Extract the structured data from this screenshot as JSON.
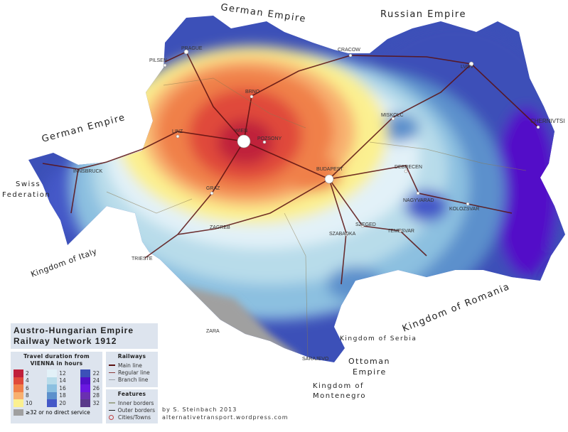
{
  "title": {
    "line1": "Austro-Hungarian Empire",
    "line2": "Railway Network 1912"
  },
  "legend": {
    "travel_header_1": "Travel duration from",
    "travel_header_2": "VIENNA in hours",
    "travel_bins": [
      {
        "label": "2",
        "color": "#c0203a"
      },
      {
        "label": "4",
        "color": "#e04a3a"
      },
      {
        "label": "6",
        "color": "#f0804a"
      },
      {
        "label": "8",
        "color": "#f8b070"
      },
      {
        "label": "10",
        "color": "#fbf090"
      },
      {
        "label": "12",
        "color": "#e2f1f8"
      },
      {
        "label": "14",
        "color": "#b8dcea"
      },
      {
        "label": "16",
        "color": "#8cc0e0"
      },
      {
        "label": "18",
        "color": "#5c90cc"
      },
      {
        "label": "20",
        "color": "#4458c8"
      },
      {
        "label": "22",
        "color": "#3c50b8"
      },
      {
        "label": "24",
        "color": "#5210c8"
      },
      {
        "label": "26",
        "color": "#6a18e0"
      },
      {
        "label": "28",
        "color": "#6a30b0"
      },
      {
        "label": "32",
        "color": "#5a3a8a"
      }
    ],
    "no_service": {
      "label": "≥32 or no direct service",
      "color": "#a0a0a0"
    },
    "railways_header": "Railways",
    "railways": [
      {
        "label": "Main line",
        "color": "#5a1010"
      },
      {
        "label": "Regular line",
        "color": "#8a3a3a"
      },
      {
        "label": "Branch line",
        "color": "#9aa0a8"
      }
    ],
    "features_header": "Features",
    "features": [
      {
        "label": "Inner borders",
        "color": "#a0a890"
      },
      {
        "label": "Outer borders",
        "color": "#222222"
      },
      {
        "label": "Cities/Towns",
        "color": "#c04040"
      }
    ]
  },
  "credit": {
    "author": "by  S. Steinbach 2013",
    "site": "alternativetransport.wordpress.com"
  },
  "countries": {
    "german_empire_north": "German Empire",
    "russian_empire": "Russian Empire",
    "german_empire_west": "German Empire",
    "swiss_1": "Swiss",
    "swiss_2": "Federation",
    "italy": "Kingdom of Italy",
    "romania": "Kingdom of Romania",
    "serbia": "Kingdom of Serbia",
    "ottoman_1": "Ottoman",
    "ottoman_2": "Empire",
    "montenegro_1": "Kingdom of",
    "montenegro_2": "Montenegro"
  },
  "cities": {
    "prague": "PRAGUE",
    "pilsen": "PILSEN",
    "cracow": "CRACOW",
    "brno": "BRNO",
    "vienna": "WIEN",
    "pozsony": "POZSONY",
    "linz": "LINZ",
    "budapest": "BUDAPEST",
    "graz": "GRAZ",
    "innsbruck": "INNSBRUCK",
    "trieste": "TRIESTE",
    "zagreb": "ZAGREB",
    "zara": "ZARA",
    "sarajevo": "SARAJEVO",
    "szeged": "SZEGED",
    "szabadka": "SZABADKA",
    "temesvar": "TEMESVAR",
    "nagyvarad": "NAGYVARAD",
    "kolozsvar": "KOLOZSVAR",
    "debrecen": "DEBRECEN",
    "miskolc": "MISKOLC",
    "lvov": "LVOV",
    "chernivtsi": "CHERNIVTSI"
  }
}
